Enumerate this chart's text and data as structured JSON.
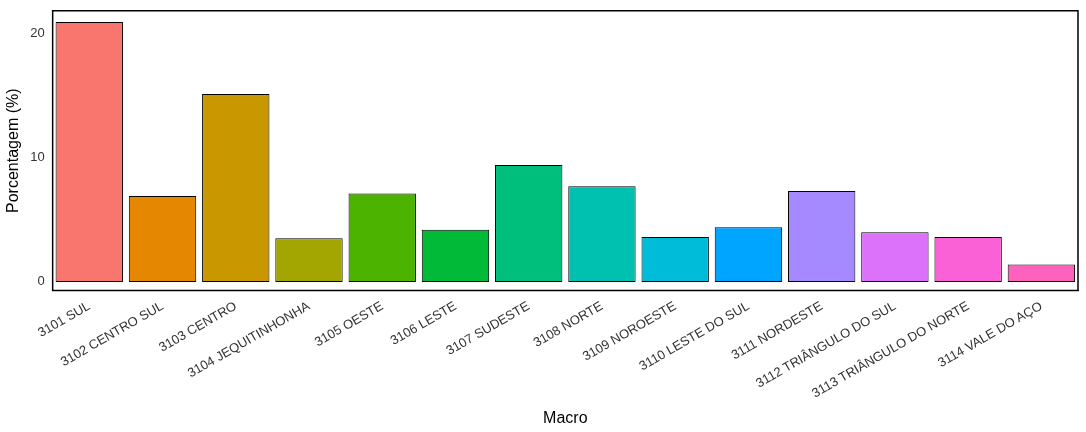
{
  "chart_data": {
    "type": "bar",
    "xlabel": "Macro",
    "ylabel": "Porcentagem (%)",
    "categories": [
      "3101 SUL",
      "3102 CENTRO SUL",
      "3103 CENTRO",
      "3104 JEQUITINHONHA",
      "3105 OESTE",
      "3106 LESTE",
      "3107 SUDESTE",
      "3108 NORTE",
      "3109 NOROESTE",
      "3110 LESTE DO SUL",
      "3111 NORDESTE",
      "3112 TRIÂNGULO DO SUL",
      "3113 TRIÂNGULO DO NORTE",
      "3114 VALE DO AÇO"
    ],
    "values": [
      20.9,
      6.9,
      15.1,
      3.5,
      7.1,
      4.2,
      9.4,
      7.7,
      3.6,
      4.4,
      7.3,
      4.0,
      3.6,
      1.4
    ],
    "colors": [
      "#f8766d",
      "#e58700",
      "#c99800",
      "#a3a500",
      "#4cb400",
      "#00ba38",
      "#00bf7d",
      "#00c0af",
      "#00bcd8",
      "#00a5ff",
      "#a58aff",
      "#dc71fa",
      "#fb61d7",
      "#ff62bc"
    ],
    "ylim": [
      -0.7,
      21.8
    ],
    "yticks": [
      0,
      10,
      20
    ],
    "grid": false,
    "legend": false
  }
}
